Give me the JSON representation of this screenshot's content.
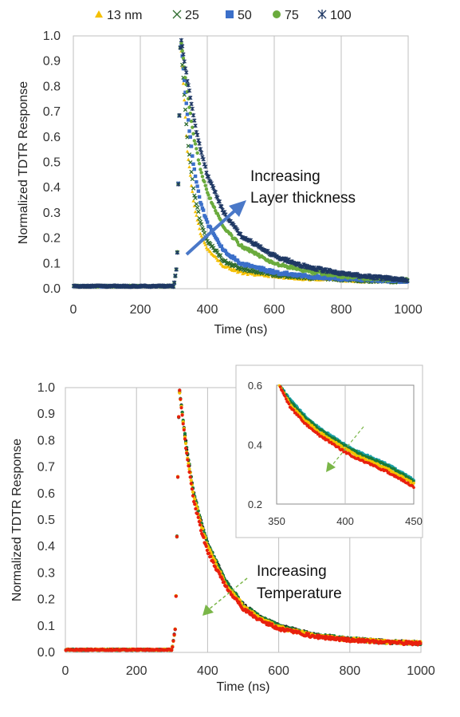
{
  "chart_data": [
    {
      "type": "scatter",
      "xlabel": "Time (ns)",
      "ylabel": "Normalized TDTR Response",
      "xlim": [
        0,
        1000
      ],
      "ylim": [
        0,
        1.0
      ],
      "x_ticks": [
        "0",
        "200",
        "400",
        "600",
        "800",
        "1000"
      ],
      "y_ticks": [
        "0.0",
        "0.1",
        "0.2",
        "0.3",
        "0.4",
        "0.5",
        "0.6",
        "0.7",
        "0.8",
        "0.9",
        "1.0"
      ],
      "grid": "vertical",
      "legend_position": "top",
      "annotation_lines": [
        "Increasing",
        "Layer thickness"
      ],
      "series": [
        {
          "name": "13 nm",
          "marker": "triangle",
          "color": "#f5c000",
          "x": [
            0,
            100,
            200,
            300,
            310,
            320,
            340,
            360,
            380,
            400,
            450,
            500,
            600,
            700,
            800,
            900,
            1000
          ],
          "y": [
            0.01,
            0.01,
            0.01,
            0.01,
            0.1,
            1.0,
            0.55,
            0.33,
            0.22,
            0.16,
            0.09,
            0.065,
            0.05,
            0.04,
            0.035,
            0.03,
            0.03
          ]
        },
        {
          "name": "25",
          "marker": "x",
          "color": "#2e6b2e",
          "x": [
            0,
            100,
            200,
            300,
            310,
            320,
            340,
            360,
            380,
            400,
            450,
            500,
            600,
            700,
            800,
            900,
            1000
          ],
          "y": [
            0.01,
            0.01,
            0.01,
            0.01,
            0.1,
            1.0,
            0.6,
            0.38,
            0.26,
            0.19,
            0.11,
            0.08,
            0.055,
            0.045,
            0.038,
            0.032,
            0.03
          ]
        },
        {
          "name": "50",
          "marker": "square",
          "color": "#3b6fc9",
          "x": [
            0,
            100,
            200,
            300,
            310,
            320,
            340,
            360,
            380,
            400,
            450,
            500,
            600,
            700,
            800,
            900,
            1000
          ],
          "y": [
            0.01,
            0.01,
            0.01,
            0.01,
            0.1,
            1.0,
            0.7,
            0.48,
            0.34,
            0.26,
            0.15,
            0.1,
            0.065,
            0.05,
            0.04,
            0.035,
            0.03
          ]
        },
        {
          "name": "75",
          "marker": "circle",
          "color": "#6aab3d",
          "x": [
            0,
            100,
            200,
            300,
            310,
            320,
            340,
            360,
            380,
            400,
            450,
            500,
            600,
            700,
            800,
            900,
            1000
          ],
          "y": [
            0.01,
            0.01,
            0.01,
            0.01,
            0.1,
            1.0,
            0.78,
            0.6,
            0.47,
            0.38,
            0.24,
            0.17,
            0.1,
            0.07,
            0.05,
            0.04,
            0.035
          ]
        },
        {
          "name": "100",
          "marker": "asterisk",
          "color": "#1f3864",
          "x": [
            0,
            100,
            200,
            300,
            310,
            320,
            340,
            360,
            380,
            400,
            450,
            500,
            600,
            700,
            800,
            900,
            1000
          ],
          "y": [
            0.01,
            0.01,
            0.01,
            0.01,
            0.1,
            1.0,
            0.83,
            0.67,
            0.55,
            0.45,
            0.3,
            0.21,
            0.13,
            0.085,
            0.06,
            0.045,
            0.035
          ]
        }
      ]
    },
    {
      "type": "scatter",
      "xlabel": "Time (ns)",
      "ylabel": "Normalized TDTR Response",
      "xlim": [
        0,
        1000
      ],
      "ylim": [
        0,
        1.0
      ],
      "x_ticks": [
        "0",
        "200",
        "400",
        "600",
        "800",
        "1000"
      ],
      "y_ticks": [
        "0.0",
        "0.1",
        "0.2",
        "0.3",
        "0.4",
        "0.5",
        "0.6",
        "0.7",
        "0.8",
        "0.9",
        "1.0"
      ],
      "grid": "vertical",
      "annotation_lines": [
        "Increasing",
        "Temperature"
      ],
      "series": [
        {
          "color": "#1a1a1a",
          "x": [
            0,
            100,
            200,
            300,
            310,
            320,
            340,
            360,
            380,
            400,
            450,
            500,
            550,
            600,
            700,
            800,
            900,
            1000
          ],
          "y": [
            0.01,
            0.01,
            0.01,
            0.01,
            0.1,
            1.0,
            0.78,
            0.61,
            0.5,
            0.41,
            0.27,
            0.18,
            0.13,
            0.1,
            0.065,
            0.05,
            0.04,
            0.035
          ]
        },
        {
          "color": "#1a7a3a",
          "x": [
            0,
            100,
            200,
            300,
            310,
            320,
            340,
            360,
            380,
            400,
            450,
            500,
            550,
            600,
            700,
            800,
            900,
            1000
          ],
          "y": [
            0.01,
            0.01,
            0.01,
            0.01,
            0.1,
            1.0,
            0.78,
            0.61,
            0.5,
            0.41,
            0.27,
            0.18,
            0.13,
            0.1,
            0.065,
            0.05,
            0.04,
            0.035
          ]
        },
        {
          "color": "#f2c200",
          "x": [
            0,
            100,
            200,
            300,
            310,
            320,
            340,
            360,
            380,
            400,
            450,
            500,
            550,
            600,
            700,
            800,
            900,
            1000
          ],
          "y": [
            0.01,
            0.01,
            0.01,
            0.01,
            0.1,
            1.0,
            0.77,
            0.6,
            0.49,
            0.4,
            0.26,
            0.175,
            0.125,
            0.095,
            0.063,
            0.049,
            0.04,
            0.035
          ]
        },
        {
          "color": "#e8200e",
          "x": [
            0,
            100,
            200,
            300,
            310,
            320,
            340,
            360,
            380,
            400,
            450,
            500,
            550,
            600,
            700,
            800,
            900,
            1000
          ],
          "y": [
            0.01,
            0.01,
            0.01,
            0.01,
            0.1,
            1.0,
            0.76,
            0.58,
            0.47,
            0.38,
            0.25,
            0.165,
            0.12,
            0.09,
            0.06,
            0.047,
            0.038,
            0.034
          ]
        }
      ],
      "inset": {
        "xlim": [
          350,
          450
        ],
        "ylim": [
          0.2,
          0.6
        ],
        "x_ticks": [
          "350",
          "400",
          "450"
        ],
        "y_ticks": [
          "0.2",
          "0.4",
          "0.6"
        ],
        "series": [
          {
            "color": "#1aa0a8",
            "x": [
              352,
              360,
              370,
              380,
              390,
              400,
              410,
              420,
              430,
              440,
              450
            ],
            "y": [
              0.6,
              0.55,
              0.5,
              0.46,
              0.43,
              0.4,
              0.375,
              0.355,
              0.335,
              0.31,
              0.28
            ]
          },
          {
            "color": "#1a7a3a",
            "x": [
              352,
              360,
              370,
              380,
              390,
              400,
              410,
              420,
              430,
              440,
              450
            ],
            "y": [
              0.6,
              0.545,
              0.495,
              0.455,
              0.425,
              0.395,
              0.37,
              0.35,
              0.33,
              0.305,
              0.275
            ]
          },
          {
            "color": "#f2c200",
            "x": [
              352,
              360,
              370,
              380,
              390,
              400,
              410,
              420,
              430,
              440,
              450
            ],
            "y": [
              0.6,
              0.535,
              0.485,
              0.445,
              0.415,
              0.385,
              0.36,
              0.34,
              0.32,
              0.295,
              0.268
            ]
          },
          {
            "color": "#e8200e",
            "x": [
              352,
              360,
              370,
              380,
              390,
              400,
              410,
              420,
              430,
              440,
              450
            ],
            "y": [
              0.6,
              0.525,
              0.475,
              0.435,
              0.405,
              0.375,
              0.35,
              0.33,
              0.31,
              0.285,
              0.258
            ]
          }
        ]
      }
    }
  ]
}
